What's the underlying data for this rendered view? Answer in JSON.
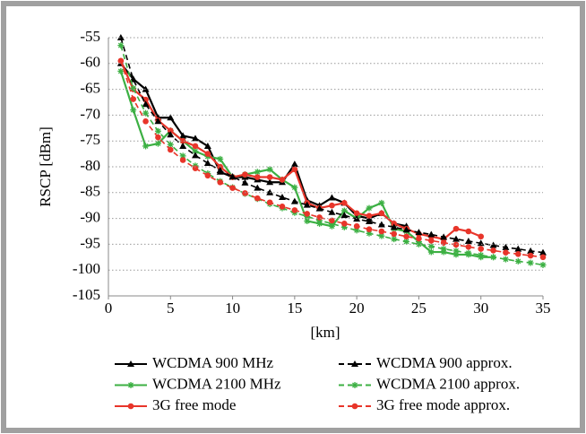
{
  "chart_data": {
    "type": "line",
    "x_label": "[km]",
    "y_label": "RSCP [dBm]",
    "xlim": [
      0,
      35
    ],
    "ylim": [
      -105,
      -55
    ],
    "xticks": [
      0,
      5,
      10,
      15,
      20,
      25,
      30,
      35
    ],
    "yticks": [
      -55,
      -60,
      -65,
      -70,
      -75,
      -80,
      -85,
      -90,
      -95,
      -100,
      -105
    ],
    "grid": true,
    "series": [
      {
        "name": "WCDMA 900 MHz",
        "color": "#000000",
        "marker": "triangle",
        "dashed": false,
        "x": [
          1,
          2,
          3,
          4,
          5,
          6,
          7,
          8,
          9,
          10,
          11,
          12,
          13,
          14,
          15,
          16,
          17,
          18,
          19,
          20,
          21,
          22,
          23,
          24
        ],
        "values": [
          -60,
          -63,
          -65,
          -70.5,
          -70.5,
          -74,
          -74.5,
          -76,
          -81,
          -82,
          -82,
          -82.5,
          -83,
          -83,
          -79.5,
          -86.5,
          -87.5,
          -86,
          -87,
          -89.5,
          -90,
          -89,
          -91,
          -91.5
        ]
      },
      {
        "name": "WCDMA 2100 MHz",
        "color": "#3cb043",
        "marker": "asterisk",
        "dashed": false,
        "x": [
          1,
          2,
          3,
          4,
          5,
          6,
          7,
          8,
          9,
          10,
          11,
          12,
          13,
          14,
          15,
          16,
          17,
          18,
          19,
          20,
          21,
          22,
          23,
          24,
          25,
          26,
          27,
          28,
          29,
          30,
          31
        ],
        "values": [
          -61.5,
          -69,
          -76,
          -75.5,
          -73,
          -75,
          -77,
          -78,
          -78.5,
          -82,
          -81.5,
          -81,
          -80.5,
          -82.5,
          -84,
          -90.5,
          -91,
          -91.5,
          -88.5,
          -90,
          -88,
          -87,
          -92,
          -92.5,
          -94.5,
          -96.5,
          -96.5,
          -97,
          -97,
          -97.5,
          -97.5
        ]
      },
      {
        "name": "3G free mode",
        "color": "#e8352a",
        "marker": "circle",
        "dashed": false,
        "x": [
          1,
          2,
          3,
          4,
          5,
          6,
          7,
          8,
          9,
          10,
          11,
          12,
          13,
          14,
          15,
          16,
          17,
          18,
          19,
          20,
          21,
          22,
          23,
          24,
          25,
          26,
          27,
          28,
          29,
          30
        ],
        "values": [
          -59.5,
          -65,
          -67,
          -71,
          -73,
          -75,
          -76,
          -77.5,
          -80,
          -82,
          -81.5,
          -82,
          -82,
          -82.5,
          -80.5,
          -87,
          -88,
          -87.5,
          -87,
          -89,
          -89.5,
          -89,
          -91,
          -92,
          -93,
          -93.5,
          -94,
          -92,
          -92.5,
          -93.5
        ]
      },
      {
        "name": "WCDMA 900 approx.",
        "color": "#000000",
        "marker": "triangle",
        "dashed": true,
        "x": [
          1,
          2,
          3,
          4,
          5,
          6,
          7,
          8,
          9,
          10,
          11,
          12,
          13,
          14,
          15,
          16,
          17,
          18,
          19,
          20,
          21,
          22,
          23,
          24,
          25,
          26,
          27,
          28,
          29,
          30,
          31,
          32,
          33,
          34,
          35
        ],
        "values": [
          -55,
          -63.1,
          -67.9,
          -71.2,
          -73.8,
          -76,
          -77.8,
          -79.3,
          -80.7,
          -81.9,
          -83.1,
          -84.1,
          -85,
          -85.9,
          -86.7,
          -87.4,
          -88.1,
          -88.8,
          -89.4,
          -90.1,
          -90.6,
          -91.2,
          -91.7,
          -92.2,
          -92.7,
          -93.1,
          -93.6,
          -94,
          -94.4,
          -94.8,
          -95.2,
          -95.6,
          -95.9,
          -96.3,
          -96.6
        ]
      },
      {
        "name": "WCDMA 2100 approx.",
        "color": "#3cb043",
        "marker": "asterisk",
        "dashed": true,
        "x": [
          1,
          2,
          3,
          4,
          5,
          6,
          7,
          8,
          9,
          10,
          11,
          12,
          13,
          14,
          15,
          16,
          17,
          18,
          19,
          20,
          21,
          22,
          23,
          24,
          25,
          26,
          27,
          28,
          29,
          30,
          31,
          32,
          33,
          34,
          35
        ],
        "values": [
          -56.5,
          -64.8,
          -69.6,
          -73.1,
          -75.7,
          -77.9,
          -79.8,
          -81.3,
          -82.8,
          -84,
          -85.2,
          -86.2,
          -87.2,
          -88,
          -88.9,
          -89.6,
          -90.4,
          -91,
          -91.7,
          -92.3,
          -92.9,
          -93.4,
          -94,
          -94.5,
          -95,
          -95.4,
          -95.9,
          -96.3,
          -96.7,
          -97.1,
          -97.5,
          -97.9,
          -98.3,
          -98.6,
          -99
        ]
      },
      {
        "name": "3G free mode approx.",
        "color": "#e8352a",
        "marker": "circle",
        "dashed": true,
        "x": [
          1,
          2,
          3,
          4,
          5,
          6,
          7,
          8,
          9,
          10,
          11,
          12,
          13,
          14,
          15,
          16,
          17,
          18,
          19,
          20,
          21,
          22,
          23,
          24,
          25,
          26,
          27,
          28,
          29,
          30,
          31,
          32,
          33,
          34,
          35
        ],
        "values": [
          -59.5,
          -66.9,
          -71.2,
          -74.3,
          -76.7,
          -78.7,
          -80.3,
          -81.7,
          -83,
          -84.1,
          -85.1,
          -86.1,
          -86.9,
          -87.7,
          -88.4,
          -89.1,
          -89.8,
          -90.4,
          -91,
          -91.5,
          -92.1,
          -92.5,
          -93,
          -93.5,
          -93.9,
          -94.3,
          -94.7,
          -95.1,
          -95.5,
          -95.9,
          -96.2,
          -96.6,
          -96.9,
          -97.2,
          -97.5
        ]
      }
    ]
  }
}
